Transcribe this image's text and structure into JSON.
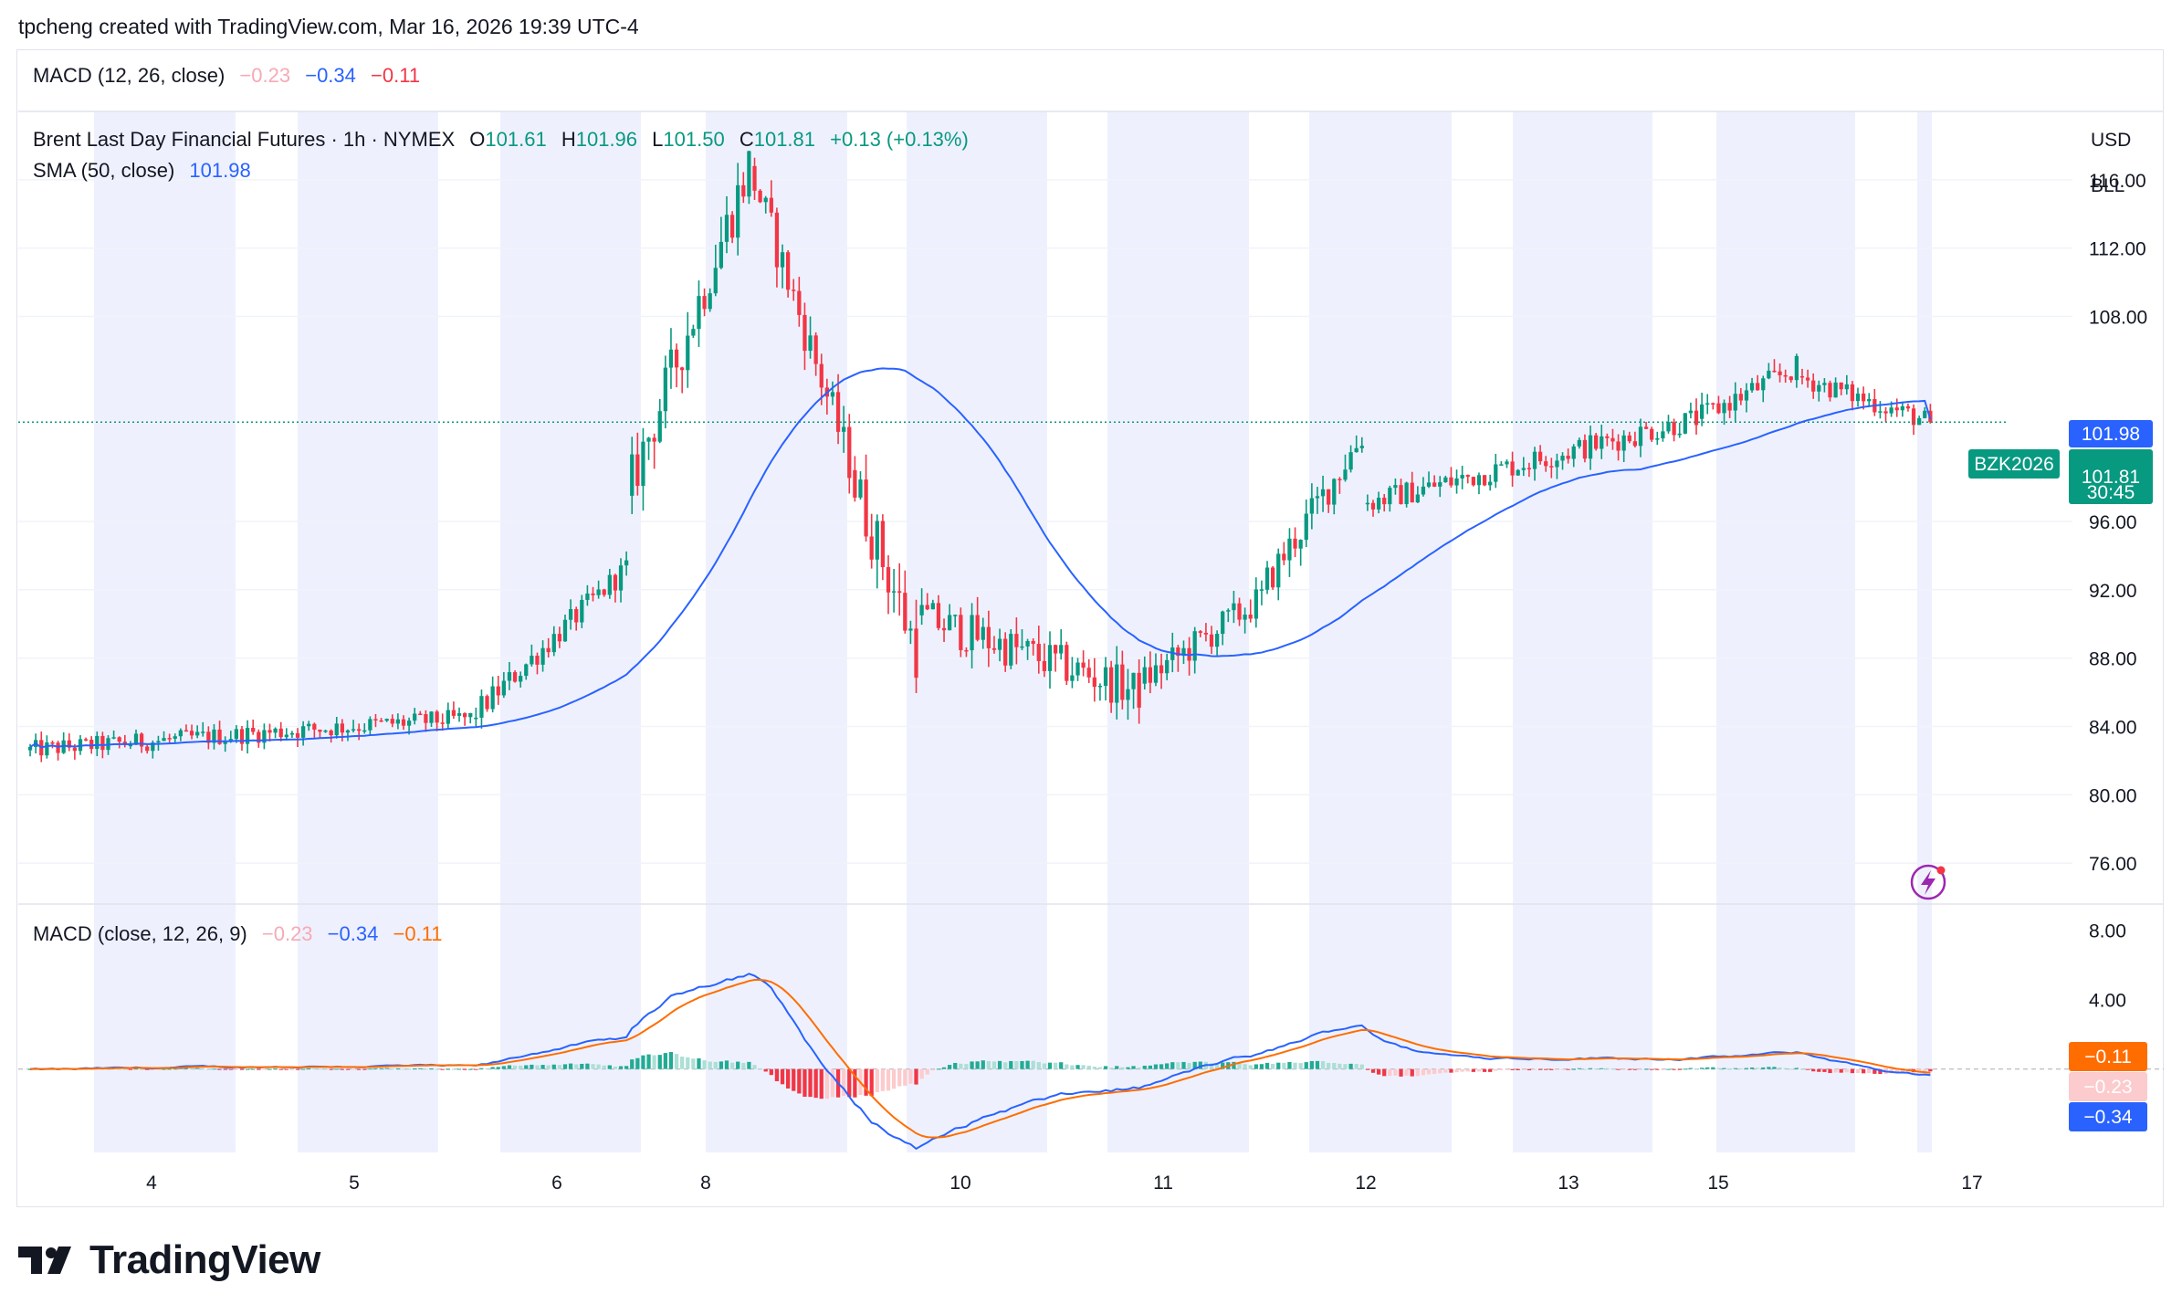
{
  "header": {
    "credit": "tpcheng created with TradingView.com, Mar 16, 2026 19:39 UTC-4"
  },
  "top_legend": {
    "name": "MACD (12, 26, close)",
    "v1": "−0.23",
    "v2": "−0.34",
    "v3": "−0.11"
  },
  "price_legend": {
    "symbol": "Brent Last Day Financial Futures · 1h · NYMEX",
    "o_label": "O",
    "o": "101.61",
    "h_label": "H",
    "h": "101.96",
    "l_label": "L",
    "l": "101.50",
    "c_label": "C",
    "c": "101.81",
    "change": "+0.13 (+0.13%)",
    "sma_name": "SMA (50, close)",
    "sma_value": "101.98"
  },
  "units": {
    "currency": "USD",
    "unit": "BLL"
  },
  "macd_legend": {
    "name": "MACD (close, 12, 26, 9)",
    "v1": "−0.23",
    "v2": "−0.34",
    "v3": "−0.11"
  },
  "tags": {
    "sma": "101.98",
    "symbol": "BZK2026",
    "price": "101.81",
    "countdown": "30:45",
    "macd_signal": "−0.11",
    "macd_hist": "−0.23",
    "macd_line": "−0.34"
  },
  "footer": {
    "brand": "TradingView"
  },
  "colors": {
    "up": "#089981",
    "down": "#f23645",
    "sma": "#2962ff",
    "signal": "#ff6d00",
    "session": "#eef1fd"
  },
  "chart_data": {
    "type": "candlestick",
    "price_axis": {
      "ticks": [
        "116.00",
        "112.00",
        "108.00",
        "96.00",
        "92.00",
        "88.00",
        "84.00",
        "80.00",
        "76.00"
      ],
      "range": [
        73.6,
        120.0
      ]
    },
    "macd_axis": {
      "ticks": [
        "8.00",
        "4.00"
      ],
      "range": [
        -4.8,
        9.5
      ]
    },
    "x_ticks": [
      "4",
      "5",
      "6",
      "8",
      "10",
      "11",
      "12",
      "13",
      "15",
      "17"
    ],
    "last_price": 101.81,
    "sma_last": 101.98,
    "segments": [
      {
        "from": 0,
        "to": 80,
        "p0": 82.6,
        "p1": 84.5,
        "vol": 0.7
      },
      {
        "from": 80,
        "to": 108,
        "p0": 84.5,
        "p1": 93.3,
        "vol": 0.9
      },
      {
        "from": 108,
        "to": 130,
        "p0": 97.5,
        "p1": 116.8,
        "vol": 2.0
      },
      {
        "from": 130,
        "to": 148,
        "p0": 116.8,
        "p1": 99.5,
        "vol": 1.6
      },
      {
        "from": 148,
        "to": 160,
        "p0": 99.0,
        "p1": 88.5,
        "vol": 2.2
      },
      {
        "from": 160,
        "to": 200,
        "p0": 90.5,
        "p1": 86.0,
        "vol": 1.5
      },
      {
        "from": 200,
        "to": 222,
        "p0": 86.5,
        "p1": 91.5,
        "vol": 1.2
      },
      {
        "from": 222,
        "to": 240,
        "p0": 92.0,
        "p1": 101.0,
        "vol": 1.3
      },
      {
        "from": 240,
        "to": 300,
        "p0": 97.0,
        "p1": 102.0,
        "vol": 0.9
      },
      {
        "from": 300,
        "to": 318,
        "p0": 102.0,
        "p1": 105.0,
        "vol": 0.9
      },
      {
        "from": 318,
        "to": 342,
        "p0": 104.5,
        "p1": 101.81,
        "vol": 0.8
      }
    ],
    "n_bars": 342,
    "series": [
      {
        "name": "Brent Last Day Financial Futures",
        "kind": "ohlc"
      },
      {
        "name": "SMA (50, close)",
        "kind": "line"
      },
      {
        "name": "MACD (close, 12, 26, 9)",
        "kind": "macd"
      }
    ]
  }
}
